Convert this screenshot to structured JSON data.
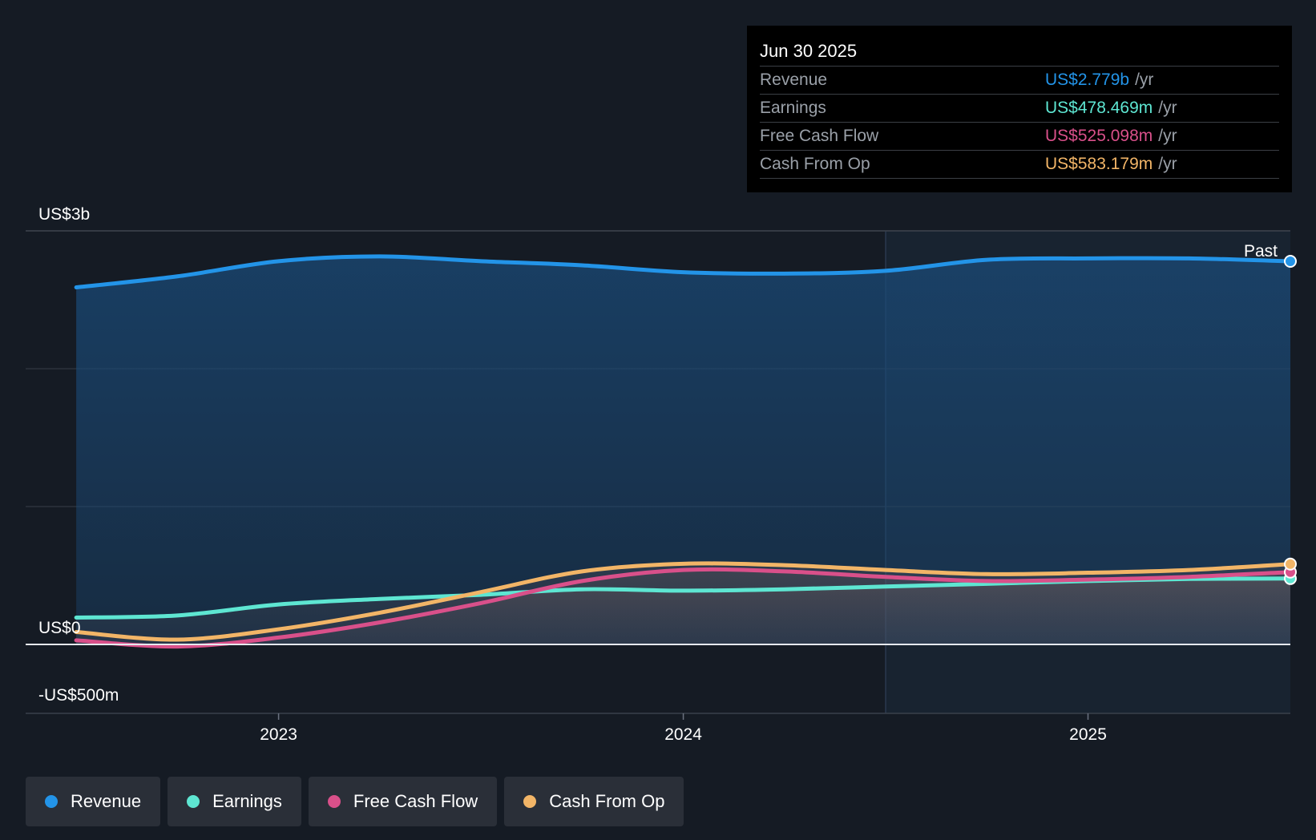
{
  "tooltip": {
    "date": "Jun 30 2025",
    "rows": [
      {
        "label": "Revenue",
        "value": "US$2.779b",
        "unit": "/yr",
        "color": "#2394e8"
      },
      {
        "label": "Earnings",
        "value": "US$478.469m",
        "unit": "/yr",
        "color": "#5ee6d2"
      },
      {
        "label": "Free Cash Flow",
        "value": "US$525.098m",
        "unit": "/yr",
        "color": "#d9508a"
      },
      {
        "label": "Cash From Op",
        "value": "US$583.179m",
        "unit": "/yr",
        "color": "#f2b567"
      }
    ]
  },
  "legend": [
    {
      "label": "Revenue",
      "color": "#2394e8"
    },
    {
      "label": "Earnings",
      "color": "#5ee6d2"
    },
    {
      "label": "Free Cash Flow",
      "color": "#d9508a"
    },
    {
      "label": "Cash From Op",
      "color": "#f2b567"
    }
  ],
  "chart_data": {
    "type": "line",
    "title": "",
    "xlabel": "",
    "ylabel": "",
    "ylim": [
      -500,
      3000
    ],
    "y_unit": "US$ millions",
    "y_tick_labels": [
      {
        "value": 3000,
        "label": "US$3b"
      },
      {
        "value": 0,
        "label": "US$0"
      },
      {
        "value": -500,
        "label": "-US$500m"
      }
    ],
    "x_tick_labels": [
      {
        "value": 2023.0,
        "label": "2023"
      },
      {
        "value": 2024.0,
        "label": "2024"
      },
      {
        "value": 2025.0,
        "label": "2025"
      }
    ],
    "xlim": [
      2022.375,
      2025.5
    ],
    "past_label": "Past",
    "past_region_start": 2024.5,
    "grid": true,
    "series": [
      {
        "name": "Revenue",
        "color": "#2394e8",
        "x": [
          2022.5,
          2022.75,
          2023.0,
          2023.25,
          2023.5,
          2023.75,
          2024.0,
          2024.25,
          2024.5,
          2024.75,
          2025.0,
          2025.25,
          2025.5
        ],
        "values": [
          2590,
          2670,
          2780,
          2815,
          2780,
          2750,
          2700,
          2690,
          2710,
          2790,
          2800,
          2800,
          2779
        ]
      },
      {
        "name": "Earnings",
        "color": "#5ee6d2",
        "x": [
          2022.5,
          2022.75,
          2023.0,
          2023.25,
          2023.5,
          2023.75,
          2024.0,
          2024.25,
          2024.5,
          2024.75,
          2025.0,
          2025.25,
          2025.5
        ],
        "values": [
          195,
          210,
          290,
          330,
          360,
          400,
          390,
          400,
          420,
          440,
          460,
          475,
          478
        ]
      },
      {
        "name": "Free Cash Flow",
        "color": "#d9508a",
        "x": [
          2022.5,
          2022.75,
          2023.0,
          2023.25,
          2023.5,
          2023.75,
          2024.0,
          2024.25,
          2024.5,
          2024.75,
          2025.0,
          2025.25,
          2025.5
        ],
        "values": [
          30,
          -15,
          50,
          160,
          300,
          460,
          540,
          530,
          490,
          460,
          470,
          490,
          525
        ]
      },
      {
        "name": "Cash From Op",
        "color": "#f2b567",
        "x": [
          2022.5,
          2022.75,
          2023.0,
          2023.25,
          2023.5,
          2023.75,
          2024.0,
          2024.25,
          2024.5,
          2024.75,
          2025.0,
          2025.25,
          2025.5
        ],
        "values": [
          90,
          35,
          110,
          230,
          380,
          530,
          585,
          575,
          540,
          510,
          520,
          540,
          583
        ]
      }
    ]
  }
}
